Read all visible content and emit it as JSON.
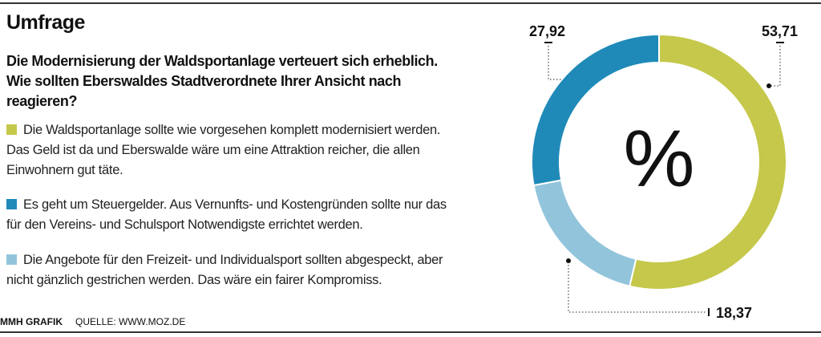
{
  "title": "Umfrage",
  "question": [
    "Die Modernisierung der Waldsportanlage verteuert sich erheblich.",
    "Wie sollten Eberswaldes Stadtverordnete Ihrer Ansicht nach",
    "reagieren?"
  ],
  "legend": [
    {
      "color": "#c5c84a",
      "lines": [
        "Die Waldsportanlage sollte wie vorgesehen komplett modernisiert werden.",
        "Das Geld ist da und Eberswalde wäre um eine Attraktion reicher, die allen",
        "Einwohnern gut täte."
      ]
    },
    {
      "color": "#1f8ab8",
      "lines": [
        "Es geht um Steuergelder. Aus Vernunfts- und Kostengründen sollte nur das",
        "für den Vereins- und Schulsport Notwendigste errichtet werden."
      ]
    },
    {
      "color": "#92c5dc",
      "lines": [
        "Die Angebote für den Freizeit- und Individualsport sollten abgespeckt, aber",
        "nicht gänzlich gestrichen werden. Das wäre ein fairer Kompromiss."
      ]
    }
  ],
  "footer": {
    "credit": "MMH GRAFIK",
    "source": "QUELLE: WWW.MOZ.DE"
  },
  "chart_data": {
    "type": "pie",
    "variant": "donut",
    "center_label": "%",
    "slices": [
      {
        "value": 53.71,
        "label": "53,71",
        "color": "#c5c84a"
      },
      {
        "value": 18.37,
        "label": "18,37",
        "color": "#92c5dc"
      },
      {
        "value": 27.92,
        "label": "27,92",
        "color": "#1f8ab8"
      }
    ],
    "start": "top",
    "direction": "clockwise"
  }
}
